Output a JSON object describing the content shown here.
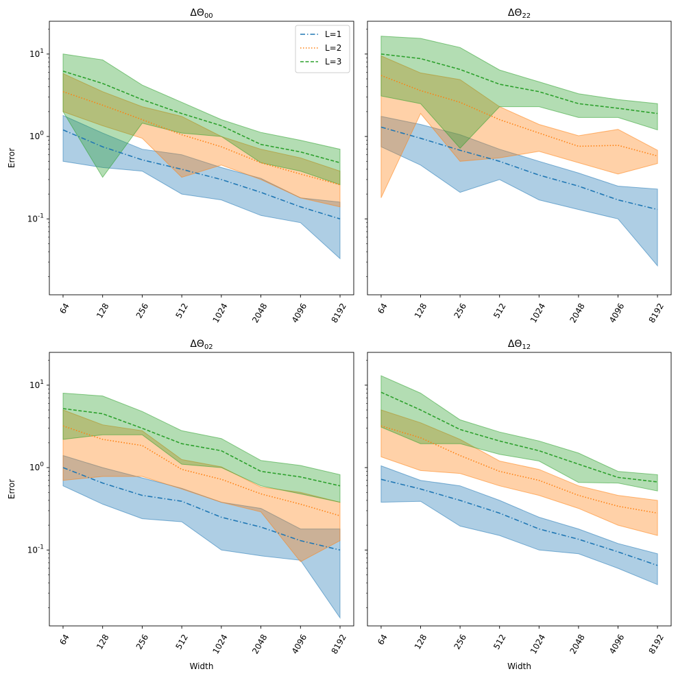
{
  "figure": {
    "shared_xlabel": "Width",
    "shared_ylabel": "Error",
    "colors": {
      "L1": "#1f77b4",
      "L2": "#ff7f0e",
      "L3": "#2ca02c"
    }
  },
  "chart_data": [
    {
      "type": "line",
      "title": "ΔΘ",
      "title_sub": "00",
      "xlabel": "",
      "ylabel": "Error",
      "yscale": "log",
      "ylim": [
        0.012,
        25
      ],
      "categories": [
        "64",
        "128",
        "256",
        "512",
        "1024",
        "2048",
        "4096",
        "8192"
      ],
      "legend": [
        "L=1",
        "L=2",
        "L=3"
      ],
      "series": [
        {
          "name": "L=1",
          "values": [
            1.2,
            0.75,
            0.52,
            0.4,
            0.3,
            0.21,
            0.14,
            0.1
          ],
          "lower": [
            0.5,
            0.42,
            0.38,
            0.2,
            0.17,
            0.11,
            0.09,
            0.033
          ],
          "upper": [
            1.8,
            1.1,
            0.7,
            0.6,
            0.42,
            0.31,
            0.18,
            0.16
          ]
        },
        {
          "name": "L=2",
          "values": [
            3.5,
            2.4,
            1.6,
            1.05,
            0.75,
            0.48,
            0.35,
            0.26
          ],
          "lower": [
            2.0,
            1.35,
            0.95,
            0.32,
            0.45,
            0.3,
            0.18,
            0.14
          ],
          "upper": [
            5.8,
            3.5,
            2.3,
            1.75,
            1.0,
            0.7,
            0.55,
            0.38
          ]
        },
        {
          "name": "L=3",
          "values": [
            6.2,
            4.4,
            2.8,
            1.9,
            1.35,
            0.8,
            0.65,
            0.48
          ],
          "lower": [
            2.0,
            0.32,
            1.45,
            1.1,
            1.0,
            0.48,
            0.38,
            0.26
          ],
          "upper": [
            10.0,
            8.5,
            4.2,
            2.6,
            1.6,
            1.12,
            0.9,
            0.7
          ]
        }
      ]
    },
    {
      "type": "line",
      "title": "ΔΘ",
      "title_sub": "22",
      "xlabel": "",
      "ylabel": "",
      "yscale": "log",
      "ylim": [
        0.012,
        25
      ],
      "categories": [
        "64",
        "128",
        "256",
        "512",
        "1024",
        "2048",
        "4096",
        "8192"
      ],
      "series": [
        {
          "name": "L=1",
          "values": [
            1.3,
            0.95,
            0.68,
            0.5,
            0.34,
            0.25,
            0.17,
            0.13
          ],
          "lower": [
            0.75,
            0.45,
            0.21,
            0.3,
            0.17,
            0.13,
            0.1,
            0.027
          ],
          "upper": [
            1.75,
            1.4,
            1.05,
            0.7,
            0.5,
            0.36,
            0.25,
            0.23
          ]
        },
        {
          "name": "L=2",
          "values": [
            5.5,
            3.6,
            2.6,
            1.6,
            1.1,
            0.76,
            0.78,
            0.58
          ],
          "lower": [
            0.18,
            1.9,
            0.5,
            0.55,
            0.66,
            0.48,
            0.35,
            0.47
          ],
          "upper": [
            9.5,
            5.9,
            4.9,
            2.3,
            1.4,
            1.02,
            1.22,
            0.68
          ]
        },
        {
          "name": "L=3",
          "values": [
            10.0,
            8.8,
            6.5,
            4.3,
            3.5,
            2.5,
            2.2,
            1.9
          ],
          "lower": [
            3.1,
            2.5,
            0.72,
            2.3,
            2.3,
            1.7,
            1.7,
            1.2
          ],
          "upper": [
            16.5,
            15.5,
            12.0,
            6.4,
            4.6,
            3.3,
            2.8,
            2.5
          ]
        }
      ]
    },
    {
      "type": "line",
      "title": "ΔΘ",
      "title_sub": "02",
      "xlabel": "Width",
      "ylabel": "Error",
      "yscale": "log",
      "ylim": [
        0.012,
        25
      ],
      "categories": [
        "64",
        "128",
        "256",
        "512",
        "1024",
        "2048",
        "4096",
        "8192"
      ],
      "series": [
        {
          "name": "L=1",
          "values": [
            1.0,
            0.65,
            0.46,
            0.39,
            0.25,
            0.19,
            0.13,
            0.1
          ],
          "lower": [
            0.6,
            0.36,
            0.24,
            0.22,
            0.1,
            0.085,
            0.075,
            0.015
          ],
          "upper": [
            1.4,
            1.0,
            0.75,
            0.56,
            0.38,
            0.32,
            0.18,
            0.18
          ]
        },
        {
          "name": "L=2",
          "values": [
            3.2,
            2.2,
            1.85,
            0.95,
            0.72,
            0.48,
            0.36,
            0.26
          ],
          "lower": [
            0.7,
            0.78,
            0.78,
            0.55,
            0.38,
            0.29,
            0.072,
            0.13
          ],
          "upper": [
            5.0,
            3.3,
            2.8,
            1.25,
            1.02,
            0.58,
            0.5,
            0.38
          ]
        },
        {
          "name": "L=3",
          "values": [
            5.2,
            4.5,
            3.0,
            1.95,
            1.6,
            0.9,
            0.77,
            0.6
          ],
          "lower": [
            2.2,
            2.5,
            2.5,
            1.1,
            1.0,
            0.6,
            0.48,
            0.38
          ],
          "upper": [
            8.0,
            7.4,
            4.8,
            2.8,
            2.25,
            1.22,
            1.06,
            0.82
          ]
        }
      ]
    },
    {
      "type": "line",
      "title": "ΔΘ",
      "title_sub": "12",
      "xlabel": "Width",
      "ylabel": "",
      "yscale": "log",
      "ylim": [
        0.012,
        25
      ],
      "categories": [
        "64",
        "128",
        "256",
        "512",
        "1024",
        "2048",
        "4096",
        "8192"
      ],
      "series": [
        {
          "name": "L=1",
          "values": [
            0.72,
            0.55,
            0.4,
            0.28,
            0.18,
            0.135,
            0.095,
            0.065
          ],
          "lower": [
            0.38,
            0.39,
            0.195,
            0.15,
            0.1,
            0.09,
            0.06,
            0.038
          ],
          "upper": [
            1.05,
            0.7,
            0.6,
            0.4,
            0.25,
            0.18,
            0.12,
            0.09
          ]
        },
        {
          "name": "L=2",
          "values": [
            3.2,
            2.3,
            1.4,
            0.9,
            0.7,
            0.46,
            0.34,
            0.28
          ],
          "lower": [
            1.35,
            0.92,
            0.85,
            0.6,
            0.46,
            0.32,
            0.2,
            0.15
          ],
          "upper": [
            5.0,
            3.5,
            2.2,
            1.2,
            0.95,
            0.6,
            0.46,
            0.4
          ]
        },
        {
          "name": "L=3",
          "values": [
            8.2,
            5.0,
            2.9,
            2.1,
            1.6,
            1.1,
            0.76,
            0.67
          ],
          "lower": [
            3.1,
            1.95,
            1.95,
            1.45,
            1.2,
            0.66,
            0.65,
            0.52
          ],
          "upper": [
            13.0,
            8.0,
            3.8,
            2.7,
            2.1,
            1.5,
            0.9,
            0.82
          ]
        }
      ]
    }
  ]
}
